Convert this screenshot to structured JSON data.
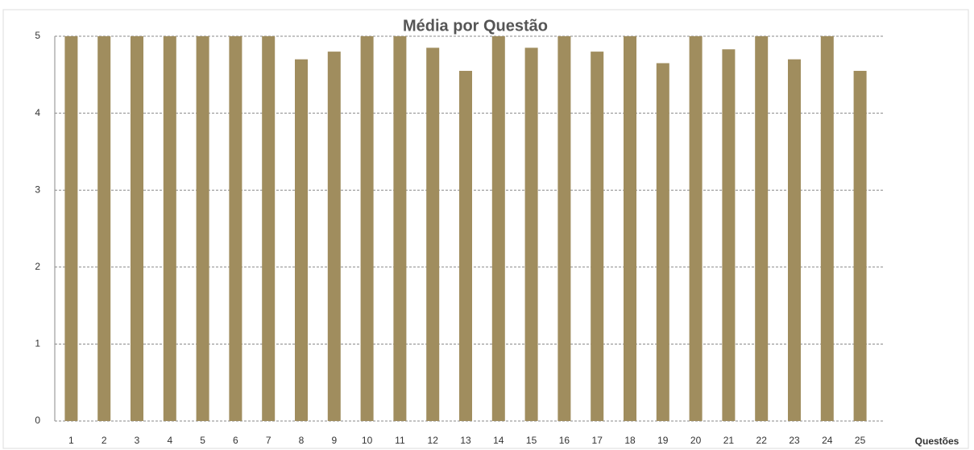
{
  "chart_data": {
    "type": "bar",
    "title": "Média por Questão",
    "x_label": "Questões",
    "categories": [
      "1",
      "2",
      "3",
      "4",
      "5",
      "6",
      "7",
      "8",
      "9",
      "10",
      "11",
      "12",
      "13",
      "14",
      "15",
      "16",
      "17",
      "18",
      "19",
      "20",
      "21",
      "22",
      "23",
      "24",
      "25"
    ],
    "values": [
      5,
      5,
      5,
      5,
      5,
      5,
      5,
      4.7,
      4.8,
      5,
      5,
      4.85,
      4.55,
      5,
      4.85,
      5,
      4.8,
      5,
      4.65,
      5,
      4.83,
      5,
      4.7,
      5,
      4.55
    ],
    "color": "#a08d5e",
    "ylim": [
      0,
      5
    ],
    "yticks": [
      0,
      1,
      2,
      3,
      4,
      5
    ],
    "grid": true
  }
}
